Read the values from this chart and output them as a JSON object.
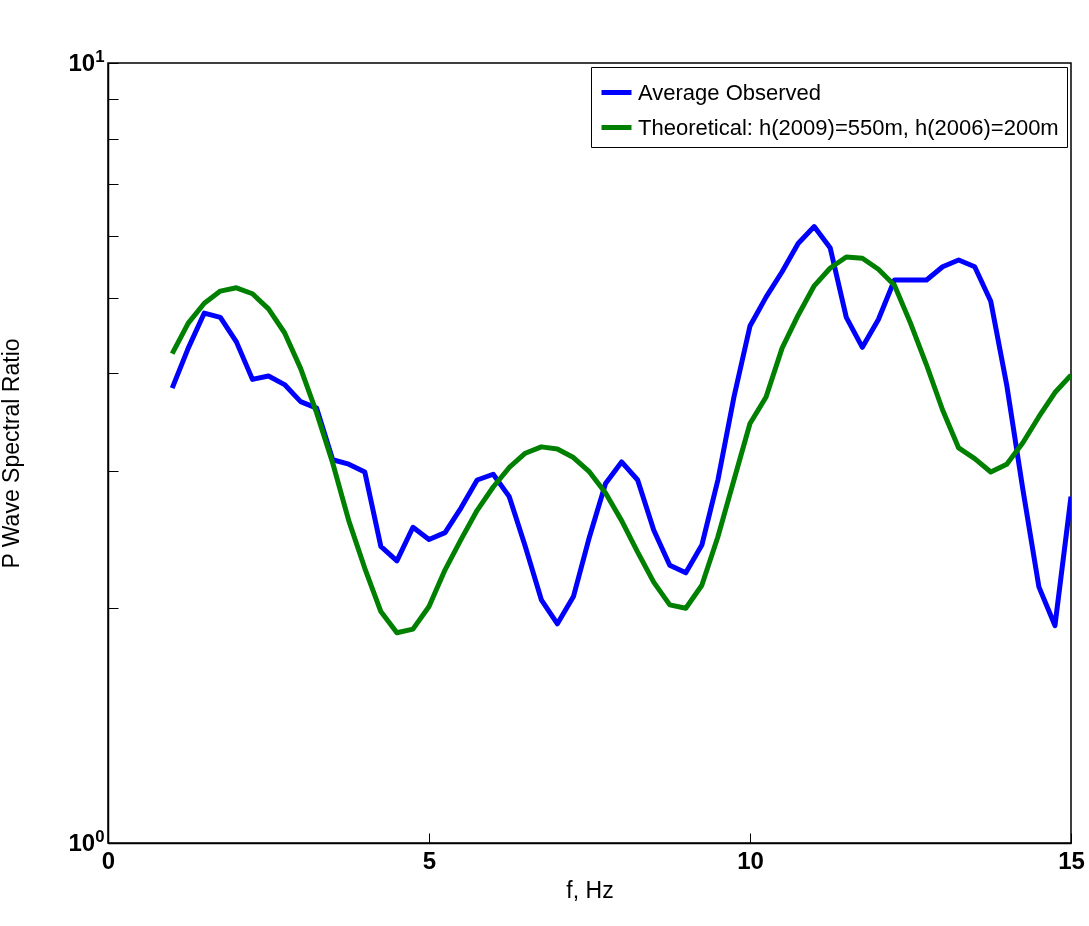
{
  "chart_data": {
    "type": "line",
    "xlabel": "f, Hz",
    "ylabel": "P Wave Spectral Ratio",
    "log": "y",
    "grid": false,
    "legend": "top right",
    "line_style": "solid",
    "marker": "none",
    "xlim": [
      0,
      15
    ],
    "xticks": [
      0,
      5,
      10,
      15
    ],
    "ylim": [
      1,
      10
    ],
    "yticks": [
      {
        "value": 1,
        "label": "10$^{0}$"
      },
      {
        "value": 2,
        "label": null
      },
      {
        "value": 3,
        "label": null
      },
      {
        "value": 4,
        "label": null
      },
      {
        "value": 5,
        "label": null
      },
      {
        "value": 6,
        "label": null
      },
      {
        "value": 7,
        "label": null
      },
      {
        "value": 8,
        "label": null
      },
      {
        "value": 9,
        "label": null
      },
      {
        "value": 10,
        "label": "10$^{1}$"
      }
    ],
    "x": [
      1,
      1.25,
      1.5,
      1.75,
      2,
      2.25,
      2.5,
      2.75,
      3,
      3.25,
      3.5,
      3.75,
      4,
      4.25,
      4.5,
      4.75,
      5,
      5.25,
      5.5,
      5.75,
      6,
      6.25,
      6.5,
      6.75,
      7,
      7.25,
      7.5,
      7.75,
      8,
      8.25,
      8.5,
      8.75,
      9,
      9.25,
      9.5,
      9.75,
      10,
      10.25,
      10.5,
      10.75,
      11,
      11.25,
      11.5,
      11.75,
      12,
      12.25,
      12.5,
      12.75,
      13,
      13.25,
      13.5,
      13.75,
      14,
      14.25,
      14.5,
      14.75,
      15
    ],
    "series": [
      {
        "name": "Average Observed",
        "color": "#0000ff",
        "values": [
          3.83,
          4.31,
          4.78,
          4.72,
          4.39,
          3.93,
          3.97,
          3.87,
          3.68,
          3.61,
          3.1,
          3.06,
          2.99,
          2.4,
          2.3,
          2.54,
          2.45,
          2.5,
          2.69,
          2.92,
          2.97,
          2.78,
          2.4,
          2.05,
          1.91,
          2.07,
          2.47,
          2.89,
          3.08,
          2.92,
          2.52,
          2.27,
          2.22,
          2.41,
          2.92,
          3.73,
          4.6,
          5.01,
          5.4,
          5.87,
          6.17,
          5.79,
          4.72,
          4.32,
          4.69,
          5.27,
          5.27,
          5.27,
          5.48,
          5.59,
          5.48,
          4.95,
          3.86,
          2.84,
          2.13,
          1.9,
          2.78
        ]
      },
      {
        "name": "Theoretical: h(2009)=550m, h(2006)=200m",
        "color": "#008000",
        "values": [
          4.24,
          4.64,
          4.92,
          5.1,
          5.15,
          5.06,
          4.84,
          4.51,
          4.06,
          3.56,
          3.07,
          2.59,
          2.25,
          1.98,
          1.86,
          1.88,
          2.01,
          2.24,
          2.45,
          2.67,
          2.86,
          3.03,
          3.16,
          3.22,
          3.2,
          3.12,
          2.99,
          2.81,
          2.59,
          2.36,
          2.16,
          2.02,
          2,
          2.14,
          2.47,
          2.92,
          3.45,
          3.73,
          4.31,
          4.75,
          5.18,
          5.46,
          5.64,
          5.62,
          5.44,
          5.19,
          4.64,
          4.1,
          3.59,
          3.21,
          3.11,
          2.99,
          3.06,
          3.26,
          3.52,
          3.78,
          3.98
        ]
      }
    ]
  }
}
